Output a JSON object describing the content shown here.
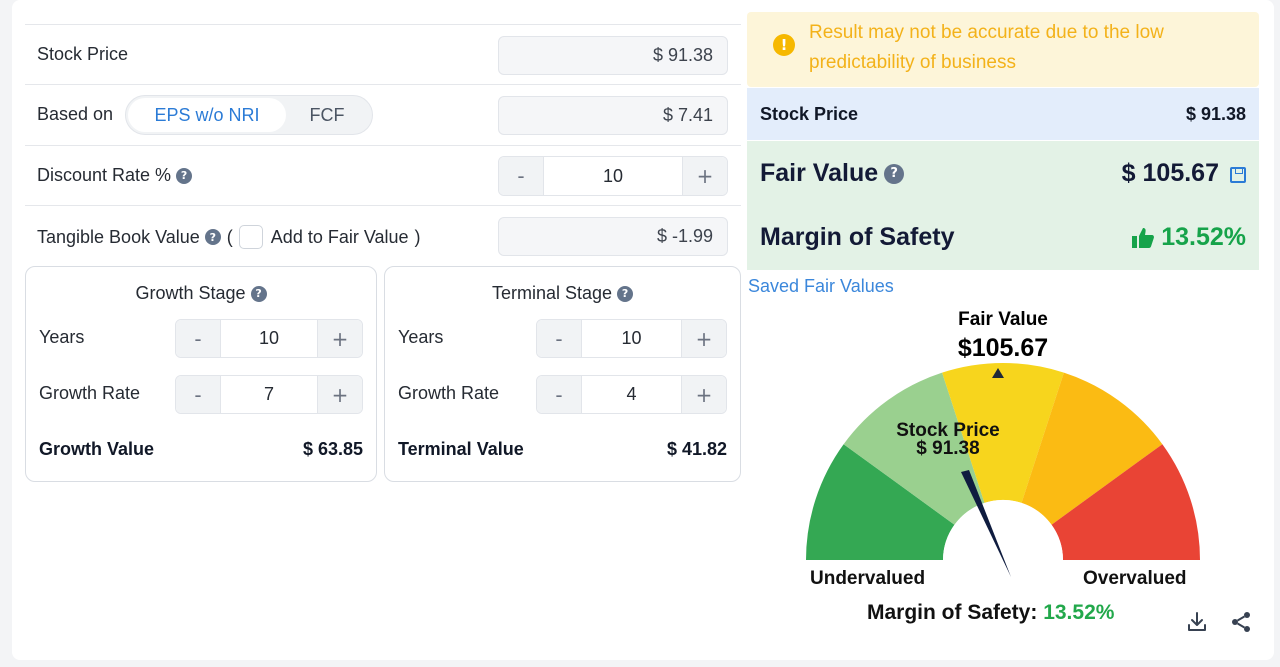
{
  "form": {
    "stock_price": {
      "label": "Stock Price",
      "value": "$ 91.38"
    },
    "based_on": {
      "label": "Based on",
      "options": [
        "EPS w/o NRI",
        "FCF"
      ],
      "selected": "EPS w/o NRI",
      "value": "$ 7.41"
    },
    "discount_rate": {
      "label": "Discount Rate %",
      "value": "10",
      "minus": "-",
      "plus": "+"
    },
    "tangible_book": {
      "label": "Tangible Book Value",
      "open_paren": "(",
      "checkbox_label": "Add to Fair Value",
      "close_paren": ")",
      "value": "$ -1.99"
    }
  },
  "growth_stage": {
    "title": "Growth Stage",
    "years_label": "Years",
    "years": "10",
    "rate_label": "Growth Rate",
    "rate": "7",
    "total_label": "Growth Value",
    "total": "$ 63.85"
  },
  "terminal_stage": {
    "title": "Terminal Stage",
    "years_label": "Years",
    "years": "10",
    "rate_label": "Growth Rate",
    "rate": "4",
    "total_label": "Terminal Value",
    "total": "$ 41.82"
  },
  "result": {
    "warning": "Result may not be accurate due to the low predictability of business",
    "stock_price_label": "Stock Price",
    "stock_price": "$ 91.38",
    "fair_value_label": "Fair Value",
    "fair_value": "$ 105.67",
    "mos_label": "Margin of Safety",
    "mos": "13.52%",
    "saved_link": "Saved Fair Values"
  },
  "gauge": {
    "fair_value_label": "Fair Value",
    "fair_value": "$105.67",
    "stock_price_label": "Stock Price",
    "stock_price": "$ 91.38",
    "left_label": "Undervalued",
    "right_label": "Overvalued",
    "mos_label": "Margin of Safety:",
    "mos": "13.52%",
    "colors": [
      "#34a853",
      "#9ad08f",
      "#f7d51d",
      "#fbbb13",
      "#e94435"
    ],
    "needle_color": "#0f1c3f",
    "icons": [
      "download-icon",
      "share-icon"
    ]
  }
}
